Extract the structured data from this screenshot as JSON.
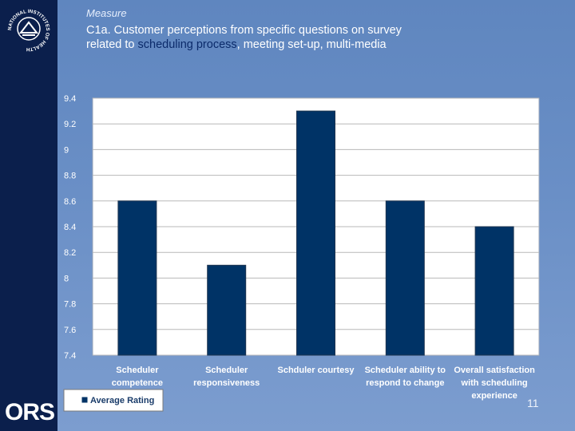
{
  "header": {
    "measure": "Measure",
    "title_line1": "C1a. Customer perceptions from specific questions on survey",
    "title_line2_prefix": "related to ",
    "title_line2_highlight": "scheduling process",
    "title_line2_suffix": ", meeting set-up, multi-media"
  },
  "logos": {
    "seal_text": "NATIONAL INSTITUTES OF HEALTH",
    "ors": "ORS"
  },
  "page_number": "11",
  "colors": {
    "sidebar": "#0b1f4c",
    "bar": "#003366",
    "highlight": "#0b2a6a"
  },
  "chart_data": {
    "type": "bar",
    "categories": [
      [
        "Scheduler",
        "competence"
      ],
      [
        "Scheduler",
        "responsiveness"
      ],
      [
        "Schduler courtesy"
      ],
      [
        "Scheduler ability to",
        "respond to change"
      ],
      [
        "Overall satisfaction",
        "with scheduling",
        "experience"
      ]
    ],
    "series": [
      {
        "name": "Average Rating",
        "values": [
          8.6,
          8.1,
          9.3,
          8.6,
          8.4
        ]
      }
    ],
    "ylim": [
      7.4,
      9.4
    ],
    "yticks": [
      "9.4",
      "9.2",
      "9",
      "8.8",
      "8.6",
      "8.4",
      "8.2",
      "8",
      "7.8",
      "7.6",
      "7.4"
    ],
    "grid": true,
    "legend": "bottom-left"
  }
}
